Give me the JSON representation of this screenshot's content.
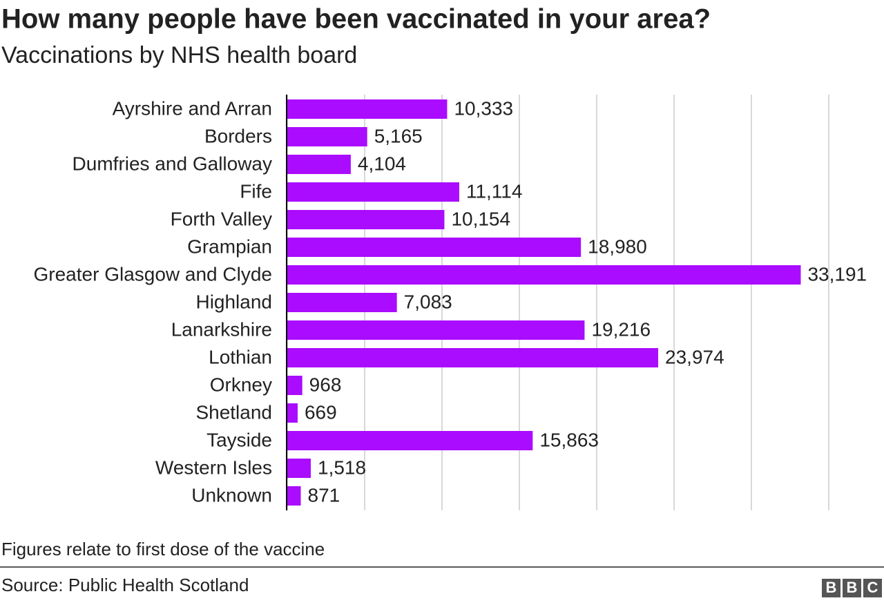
{
  "chart_data": {
    "type": "bar",
    "orientation": "horizontal",
    "title": "How many people have been vaccinated in your area?",
    "subtitle": "Vaccinations by NHS health board",
    "categories": [
      "Ayrshire and Arran",
      "Borders",
      "Dumfries and Galloway",
      "Fife",
      "Forth Valley",
      "Grampian",
      "Greater Glasgow and Clyde",
      "Highland",
      "Lanarkshire",
      "Lothian",
      "Orkney",
      "Shetland",
      "Tayside",
      "Western Isles",
      "Unknown"
    ],
    "values": [
      10333,
      5165,
      4104,
      11114,
      10154,
      18980,
      33191,
      7083,
      19216,
      23974,
      968,
      669,
      15863,
      1518,
      871
    ],
    "value_labels": [
      "10,333",
      "5,165",
      "4,104",
      "11,114",
      "10,154",
      "18,980",
      "33,191",
      "7,083",
      "19,216",
      "23,974",
      "968",
      "669",
      "15,863",
      "1,518",
      "871"
    ],
    "color": "#aa0cff",
    "xlim": [
      0,
      35000
    ],
    "xticks": [
      0,
      5000,
      10000,
      15000,
      20000,
      25000,
      30000,
      35000
    ],
    "grid": true,
    "note": "Figures relate to first dose of the vaccine",
    "source": "Source: Public Health Scotland",
    "logo": [
      "B",
      "B",
      "C"
    ]
  }
}
